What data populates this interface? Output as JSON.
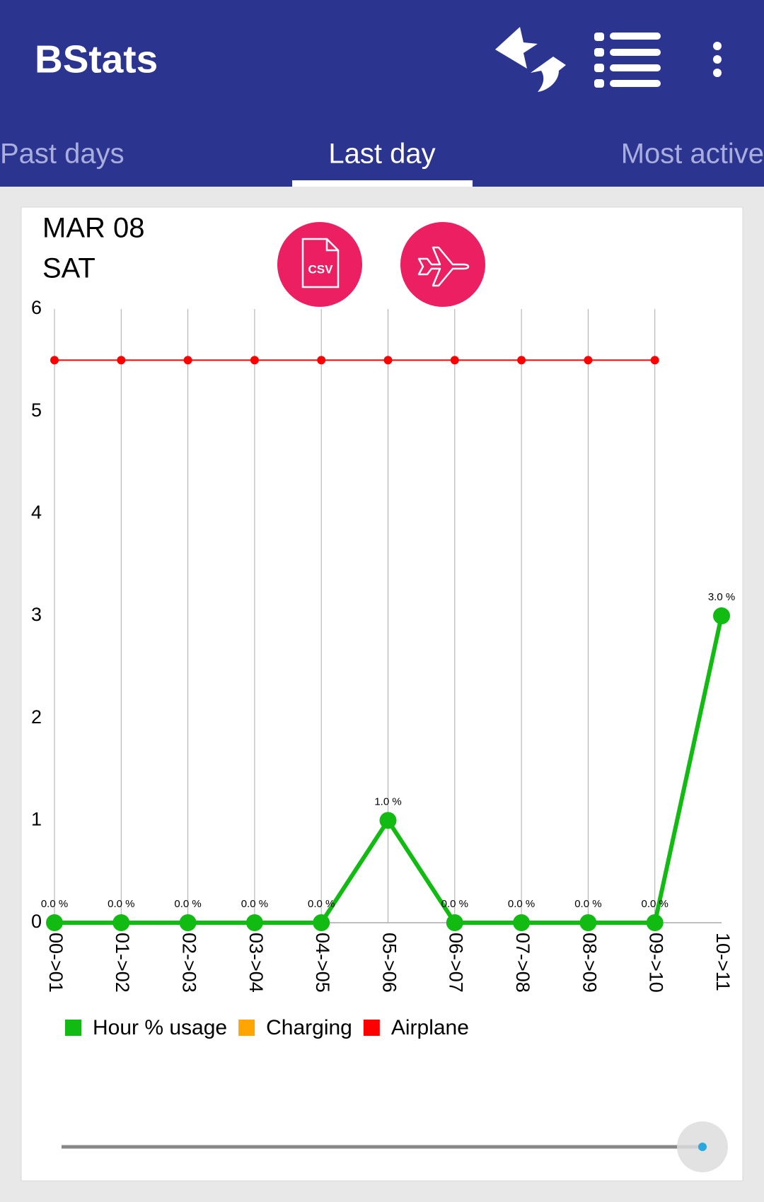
{
  "app": {
    "title": "BStats",
    "tabs": [
      "Past days",
      "Last day",
      "Most active"
    ]
  },
  "buttons": {
    "csv": "CSV"
  },
  "chart_data": {
    "type": "line",
    "title": "MAR 08",
    "subtitle": "SAT",
    "categories": [
      "00->01",
      "01->02",
      "02->03",
      "03->04",
      "04->05",
      "05->06",
      "06->07",
      "07->08",
      "08->09",
      "09->10",
      "10->11"
    ],
    "series": [
      {
        "name": "Hour % usage",
        "color": "#11bb11",
        "values": [
          0,
          0,
          0,
          0,
          0,
          1,
          0,
          0,
          0,
          0,
          3
        ],
        "value_labels": [
          "0.0 %",
          "0.0 %",
          "0.0 %",
          "0.0 %",
          "0.0 %",
          "1.0 %",
          "0.0 %",
          "0.0 %",
          "0.0 %",
          "0.0 %",
          "3.0 %"
        ]
      },
      {
        "name": "Charging",
        "color": "#ffa500",
        "values": [
          null,
          null,
          null,
          null,
          null,
          null,
          null,
          null,
          null,
          null,
          null
        ]
      },
      {
        "name": "Airplane",
        "color": "#ff0000",
        "values": [
          5.5,
          5.5,
          5.5,
          5.5,
          5.5,
          5.5,
          5.5,
          5.5,
          5.5,
          5.5,
          null
        ]
      }
    ],
    "ylim": [
      0,
      6
    ],
    "yticks": [
      0,
      1,
      2,
      3,
      4,
      5,
      6
    ],
    "grid": true
  }
}
